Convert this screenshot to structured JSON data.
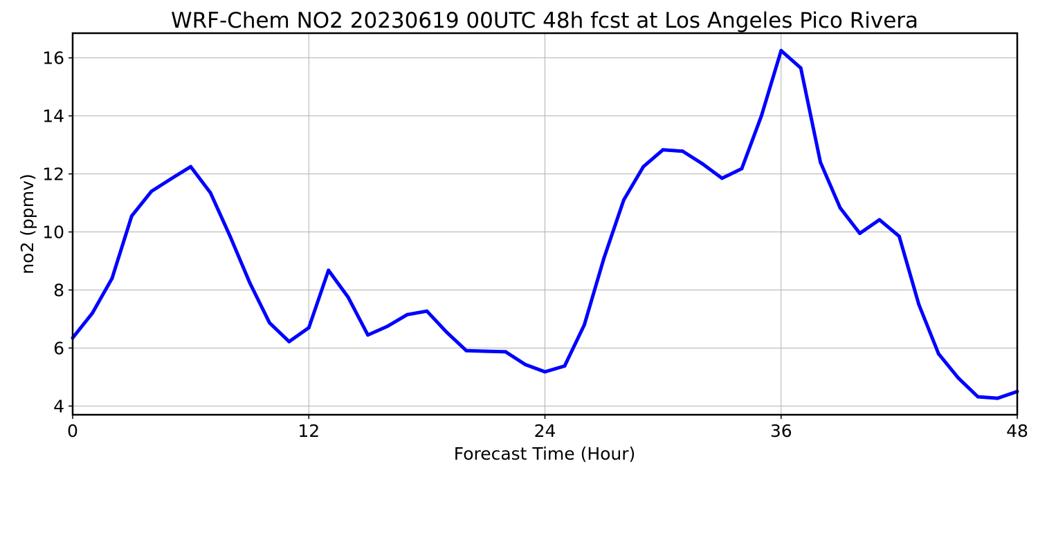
{
  "chart_data": {
    "type": "line",
    "title": "WRF-Chem NO2  20230619 00UTC 48h fcst at Los Angeles Pico Rivera",
    "xlabel": "Forecast Time (Hour)",
    "ylabel": "no2  (ppmv)",
    "xlim": [
      0,
      48
    ],
    "ylim": [
      3.7,
      16.85
    ],
    "xticks": [
      0,
      12,
      24,
      36,
      48
    ],
    "yticks": [
      4,
      6,
      8,
      10,
      12,
      14,
      16
    ],
    "grid": true,
    "line_color": "#0000ff",
    "series": [
      {
        "x": [
          0,
          1,
          2,
          3,
          4,
          5,
          6,
          7,
          8,
          9,
          10,
          11,
          12,
          13,
          14,
          15,
          16,
          17,
          18,
          19,
          20,
          21,
          22,
          23,
          24,
          25,
          26,
          27,
          28,
          29,
          30,
          31,
          32,
          33,
          34,
          35,
          36,
          37,
          38,
          39,
          40,
          41,
          42,
          43,
          44,
          45,
          46,
          47,
          48
        ],
        "values": [
          6.35,
          7.2,
          8.4,
          10.55,
          11.4,
          11.83,
          12.25,
          11.35,
          9.85,
          8.25,
          6.87,
          6.22,
          6.7,
          8.68,
          7.75,
          6.45,
          6.75,
          7.15,
          7.27,
          6.55,
          5.91,
          5.89,
          5.87,
          5.43,
          5.18,
          5.38,
          6.8,
          9.1,
          11.1,
          12.25,
          12.83,
          12.78,
          12.35,
          11.85,
          12.18,
          14.0,
          16.25,
          15.65,
          12.4,
          10.83,
          9.95,
          10.42,
          9.85,
          7.5,
          5.8,
          4.97,
          4.32,
          4.27,
          4.5
        ]
      }
    ]
  }
}
